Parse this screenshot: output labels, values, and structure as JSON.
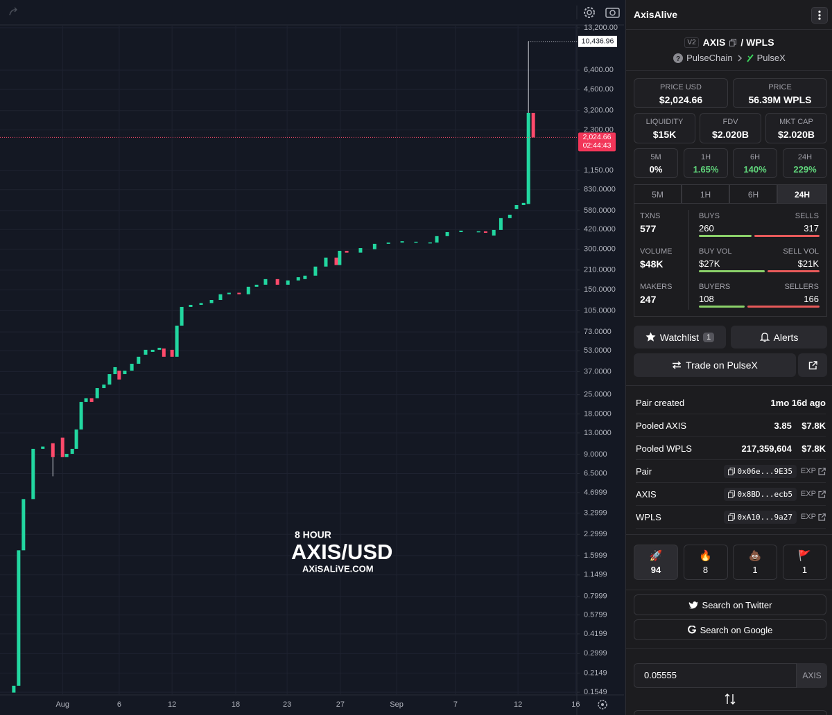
{
  "chart_data": {
    "type": "candlestick",
    "log_y": true,
    "grid": true,
    "watermark": {
      "interval": "8 HOUR",
      "symbol": "AXIS/USD",
      "site": "AXiSALiVE.COM"
    },
    "up_color": "#22d7a0",
    "down_color": "#ff4a6b",
    "xlim": [
      -3,
      151.9
    ],
    "ylim": [
      0.148,
      13840
    ],
    "xticks": [
      {
        "value": 13.8,
        "label": "Aug"
      },
      {
        "value": 29,
        "label": "6"
      },
      {
        "value": 43.2,
        "label": "12"
      },
      {
        "value": 60.3,
        "label": "18"
      },
      {
        "value": 74.1,
        "label": "23"
      },
      {
        "value": 88.4,
        "label": "27"
      },
      {
        "value": 103.5,
        "label": "Sep"
      },
      {
        "value": 119.3,
        "label": "7"
      },
      {
        "value": 136.1,
        "label": "12"
      },
      {
        "value": 151.6,
        "label": "16"
      }
    ],
    "yticks": [
      {
        "value": 13200,
        "label": "13,200.00"
      },
      {
        "value": 6400,
        "label": "6,400.00"
      },
      {
        "value": 4600,
        "label": "4,600.00"
      },
      {
        "value": 3200,
        "label": "3,200.00"
      },
      {
        "value": 2300,
        "label": "2,300.00"
      },
      {
        "value": 1150,
        "label": "1,150.00"
      },
      {
        "value": 830,
        "label": "830.0000"
      },
      {
        "value": 580,
        "label": "580.0000"
      },
      {
        "value": 420,
        "label": "420.0000"
      },
      {
        "value": 300,
        "label": "300.0000"
      },
      {
        "value": 210,
        "label": "210.0000"
      },
      {
        "value": 150,
        "label": "150.0000"
      },
      {
        "value": 105,
        "label": "105.0000"
      },
      {
        "value": 73,
        "label": "73.0000"
      },
      {
        "value": 53,
        "label": "53.0000"
      },
      {
        "value": 37,
        "label": "37.0000"
      },
      {
        "value": 25,
        "label": "25.0000"
      },
      {
        "value": 18,
        "label": "18.0000"
      },
      {
        "value": 13,
        "label": "13.0000"
      },
      {
        "value": 9,
        "label": "9.0000"
      },
      {
        "value": 6.5,
        "label": "6.5000"
      },
      4.6999,
      3.2999,
      2.2999,
      1.5999,
      1.1499,
      0.7999,
      0.5799,
      0.4199,
      0.2999,
      0.2149,
      0.1549
    ],
    "candles": [
      {
        "t": 0.7,
        "o": 0.154,
        "c": 0.173
      },
      {
        "t": 2.0,
        "o": 0.173,
        "c": 1.75
      },
      {
        "t": 3.3,
        "o": 1.75,
        "c": 4.2
      },
      {
        "t": 5.9,
        "o": 4.2,
        "c": 9.9
      },
      {
        "t": 8.5,
        "o": 9.9,
        "c": 10.3
      },
      {
        "t": 11.2,
        "o": 10.9,
        "c": 8.6,
        "l": 6.2
      },
      {
        "t": 13.8,
        "o": 12.0,
        "c": 8.6
      },
      {
        "t": 14.9,
        "o": 8.6,
        "c": 9.1
      },
      {
        "t": 16.4,
        "o": 9.1,
        "c": 9.9
      },
      {
        "t": 17.5,
        "o": 9.9,
        "c": 13.8
      },
      {
        "t": 18.8,
        "o": 13.8,
        "c": 22.1
      },
      {
        "t": 20.1,
        "o": 22.1,
        "c": 23.5
      },
      {
        "t": 21.6,
        "o": 23.5,
        "c": 22.1
      },
      {
        "t": 23.1,
        "o": 23.5,
        "c": 28.0
      },
      {
        "t": 24.9,
        "o": 28.0,
        "c": 29.7
      },
      {
        "t": 26.4,
        "o": 29.7,
        "c": 35.5
      },
      {
        "t": 27.9,
        "o": 35.5,
        "c": 40.0
      },
      {
        "t": 29.0,
        "o": 37.7,
        "c": 32.4
      },
      {
        "t": 30.5,
        "o": 35.5,
        "c": 37.7
      },
      {
        "t": 32.4,
        "o": 37.7,
        "c": 42.4
      },
      {
        "t": 34.2,
        "o": 42.4,
        "c": 47.8
      },
      {
        "t": 36.1,
        "o": 49.5,
        "c": 53.8
      },
      {
        "t": 38.0,
        "o": 51.9,
        "c": 53.8
      },
      {
        "t": 39.8,
        "o": 53.8,
        "c": 55.7
      },
      {
        "t": 41.0,
        "o": 55.0,
        "c": 47.8
      },
      {
        "t": 43.2,
        "o": 53.8,
        "c": 47.8
      },
      {
        "t": 44.5,
        "o": 47.8,
        "c": 81.3
      },
      {
        "t": 45.8,
        "o": 81.3,
        "c": 112
      },
      {
        "t": 48.2,
        "o": 112,
        "c": 116
      },
      {
        "t": 51.0,
        "o": 116,
        "c": 119.6
      },
      {
        "t": 53.8,
        "o": 119.6,
        "c": 126
      },
      {
        "t": 56.2,
        "o": 126,
        "c": 139
      },
      {
        "t": 58.5,
        "o": 139,
        "c": 142.6
      },
      {
        "t": 61.2,
        "o": 142.6,
        "c": 139
      },
      {
        "t": 63.7,
        "o": 139,
        "c": 158
      },
      {
        "t": 65.9,
        "o": 158,
        "c": 163.6
      },
      {
        "t": 68.3,
        "o": 163.6,
        "c": 180
      },
      {
        "t": 71.5,
        "o": 180,
        "c": 163.6
      },
      {
        "t": 74.3,
        "o": 163.6,
        "c": 176
      },
      {
        "t": 77.1,
        "o": 176,
        "c": 186
      },
      {
        "t": 78.9,
        "o": 180,
        "c": 191
      },
      {
        "t": 81.7,
        "o": 191,
        "c": 223
      },
      {
        "t": 84.5,
        "o": 223,
        "c": 260
      },
      {
        "t": 87.3,
        "o": 260,
        "c": 229
      },
      {
        "t": 88.2,
        "o": 229,
        "c": 292
      },
      {
        "t": 90.1,
        "o": 292,
        "c": 283
      },
      {
        "t": 93.8,
        "o": 283,
        "c": 306
      },
      {
        "t": 97.6,
        "o": 300,
        "c": 329
      },
      {
        "t": 101.3,
        "o": 329,
        "c": 336
      },
      {
        "t": 105.0,
        "o": 336,
        "c": 344
      },
      {
        "t": 108.7,
        "o": 340,
        "c": 341
      },
      {
        "t": 112.5,
        "o": 336,
        "c": 337
      },
      {
        "t": 114.3,
        "o": 336,
        "c": 375
      },
      {
        "t": 117.1,
        "o": 375,
        "c": 402
      },
      {
        "t": 120.8,
        "o": 402,
        "c": 412
      },
      {
        "t": 125.5,
        "o": 407,
        "c": 407.5
      },
      {
        "t": 127.4,
        "o": 407,
        "c": 397
      },
      {
        "t": 129.6,
        "o": 379,
        "c": 417
      },
      {
        "t": 131.5,
        "o": 417,
        "c": 510
      },
      {
        "t": 133.9,
        "o": 510,
        "c": 541
      },
      {
        "t": 135.7,
        "o": 595,
        "c": 638
      },
      {
        "t": 137.6,
        "o": 638,
        "c": 662
      },
      {
        "t": 138.9,
        "o": 650,
        "c": 3081,
        "h": 10436.96
      },
      {
        "t": 140.2,
        "o": 3081,
        "c": 2024.66
      }
    ],
    "high_marker": {
      "value": 10436.96,
      "label": "10,436.96"
    },
    "last_price": {
      "value": 2024.66,
      "label": "2,024.66"
    },
    "countdown": "02:44:43"
  },
  "panel": {
    "title": "AxisAlive",
    "pair": {
      "version": "V2",
      "base": "AXIS",
      "quote": "/ WPLS",
      "chain": "PulseChain",
      "dex": "PulseX"
    },
    "stats": [
      {
        "label": "PRICE USD",
        "value": "$2,024.66"
      },
      {
        "label": "PRICE",
        "value": "56.39M WPLS"
      },
      {
        "label": "LIQUIDITY",
        "value": "$15K"
      },
      {
        "label": "FDV",
        "value": "$2.020B"
      },
      {
        "label": "MKT CAP",
        "value": "$2.020B"
      }
    ],
    "changes": [
      {
        "label": "5M",
        "value": "0%"
      },
      {
        "label": "1H",
        "value": "1.65%"
      },
      {
        "label": "6H",
        "value": "140%"
      },
      {
        "label": "24H",
        "value": "229%"
      }
    ],
    "tabs": [
      "5M",
      "1H",
      "6H",
      "24H"
    ],
    "activity": [
      {
        "label": "TXNS",
        "value": 577,
        "left_label": "BUYS",
        "left": 260,
        "right_label": "SELLS",
        "right": 317
      },
      {
        "label": "VOLUME",
        "value": "$48K",
        "left_label": "BUY VOL",
        "left": "$27K",
        "right_label": "SELL VOL",
        "right": "$21K"
      },
      {
        "label": "MAKERS",
        "value": 247,
        "left_label": "BUYERS",
        "left": 108,
        "right_label": "SELLERS",
        "right": 166
      }
    ],
    "watchlist": {
      "label": "Watchlist",
      "count": 1
    },
    "alerts": "Alerts",
    "trade": "Trade on PulseX",
    "info": [
      {
        "label": "Pair created",
        "value": "1mo 16d ago"
      },
      {
        "label": "Pooled AXIS",
        "value": "3.85",
        "usd": "$7.8K"
      },
      {
        "label": "Pooled WPLS",
        "value": "217,359,604",
        "usd": "$7.8K"
      }
    ],
    "addresses": [
      {
        "label": "Pair",
        "address": "0x06e...9E35",
        "link": "EXP"
      },
      {
        "label": "AXIS",
        "address": "0x8BD...ecb5",
        "link": "EXP"
      },
      {
        "label": "WPLS",
        "address": "0xA10...9a27",
        "link": "EXP"
      }
    ],
    "reactions": [
      {
        "icon": "🚀",
        "count": 94
      },
      {
        "icon": "🔥",
        "count": 8
      },
      {
        "icon": "💩",
        "count": 1
      },
      {
        "icon": "🚩",
        "count": 1
      }
    ],
    "search": [
      "Search on Twitter",
      "Search on Google"
    ],
    "amount": {
      "value": "0.05555",
      "unit": "AXIS"
    }
  }
}
